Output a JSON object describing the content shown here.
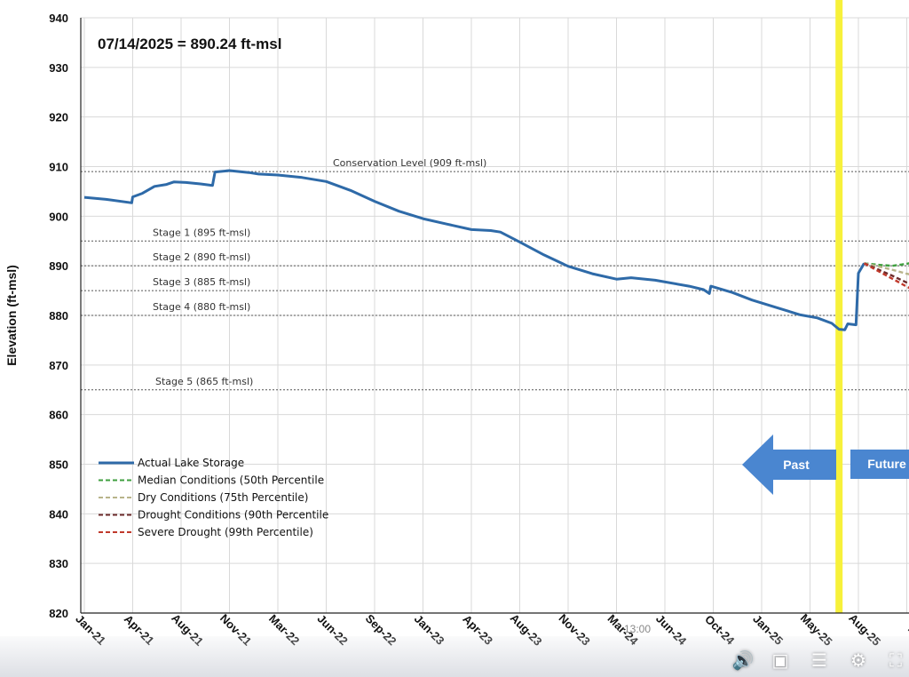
{
  "chart_data": {
    "type": "line",
    "annotation": "07/14/2025 = 890.24 ft-msl",
    "ylabel": "Elevation (ft-msl)",
    "xlabel": "",
    "ylim": [
      820,
      940
    ],
    "yticks": [
      820,
      830,
      840,
      850,
      860,
      870,
      880,
      890,
      900,
      910,
      920,
      930,
      940
    ],
    "x_categories": [
      "Jan-21",
      "Apr-21",
      "Aug-21",
      "Nov-21",
      "Mar-22",
      "Jun-22",
      "Sep-22",
      "Jan-23",
      "Apr-23",
      "Aug-23",
      "Nov-23",
      "Mar-24",
      "Jun-24",
      "Oct-24",
      "Jan-25",
      "May-25",
      "Aug-25",
      "D"
    ],
    "grid": true,
    "reference_lines": [
      {
        "label": "Conservation Level (909 ft-msl)",
        "y": 909
      },
      {
        "label": "Stage 1 (895 ft-msl)",
        "y": 895
      },
      {
        "label": "Stage 2 (890 ft-msl)",
        "y": 890
      },
      {
        "label": "Stage 3 (885 ft-msl)",
        "y": 885
      },
      {
        "label": "Stage 4 (880 ft-msl)",
        "y": 880
      },
      {
        "label": "Stage 5 (865 ft-msl)",
        "y": 865
      }
    ],
    "today_marker_x": 15.6,
    "series": [
      {
        "name": "Actual Lake Storage",
        "color": "#2e6aa8",
        "style": "solid",
        "points": [
          [
            0,
            903.8
          ],
          [
            0.45,
            903.4
          ],
          [
            0.98,
            902.7
          ],
          [
            1.0,
            903.9
          ],
          [
            1.2,
            904.6
          ],
          [
            1.45,
            906.0
          ],
          [
            1.7,
            906.4
          ],
          [
            1.85,
            906.9
          ],
          [
            2.1,
            906.8
          ],
          [
            2.4,
            906.5
          ],
          [
            2.65,
            906.2
          ],
          [
            2.7,
            908.9
          ],
          [
            3.0,
            909.2
          ],
          [
            3.4,
            908.8
          ],
          [
            3.6,
            908.5
          ],
          [
            4.0,
            908.3
          ],
          [
            4.5,
            907.8
          ],
          [
            5.0,
            907.0
          ],
          [
            5.5,
            905.2
          ],
          [
            6.0,
            903.0
          ],
          [
            6.5,
            901.0
          ],
          [
            7.0,
            899.5
          ],
          [
            7.5,
            898.4
          ],
          [
            8.0,
            897.3
          ],
          [
            8.4,
            897.1
          ],
          [
            8.6,
            896.8
          ],
          [
            9.0,
            894.8
          ],
          [
            9.5,
            892.2
          ],
          [
            10.0,
            889.9
          ],
          [
            10.5,
            888.4
          ],
          [
            11.0,
            887.3
          ],
          [
            11.3,
            887.6
          ],
          [
            11.8,
            887.1
          ],
          [
            12.5,
            885.9
          ],
          [
            12.8,
            885.2
          ],
          [
            12.92,
            884.4
          ],
          [
            12.95,
            885.9
          ],
          [
            13.4,
            884.6
          ],
          [
            13.8,
            883.1
          ],
          [
            14.3,
            881.6
          ],
          [
            14.8,
            880.1
          ],
          [
            15.15,
            879.5
          ],
          [
            15.45,
            878.4
          ],
          [
            15.6,
            877.2
          ],
          [
            15.72,
            877.1
          ],
          [
            15.78,
            878.3
          ],
          [
            15.95,
            878.1
          ],
          [
            16.0,
            888.5
          ],
          [
            16.12,
            890.5
          ]
        ]
      },
      {
        "name": "Median Conditions (50th Percentile",
        "color": "#3f9f3f",
        "style": "dashed",
        "points": [
          [
            16.12,
            890.5
          ],
          [
            16.4,
            890.2
          ],
          [
            16.7,
            890.0
          ],
          [
            17.0,
            890.4
          ],
          [
            17.3,
            891.0
          ]
        ]
      },
      {
        "name": "Dry Conditions (75th Percentile)",
        "color": "#b8b48a",
        "style": "dashed",
        "points": [
          [
            16.12,
            890.5
          ],
          [
            16.4,
            889.9
          ],
          [
            16.7,
            889.2
          ],
          [
            17.0,
            888.4
          ],
          [
            17.3,
            887.8
          ]
        ]
      },
      {
        "name": "Drought Conditions (90th Percentile",
        "color": "#6b2a2a",
        "style": "dashed",
        "points": [
          [
            16.12,
            890.5
          ],
          [
            16.4,
            889.3
          ],
          [
            16.7,
            888.0
          ],
          [
            17.0,
            886.6
          ],
          [
            17.3,
            885.2
          ]
        ]
      },
      {
        "name": "Severe Drought (99th Percentile)",
        "color": "#c0392b",
        "style": "dashed",
        "points": [
          [
            16.12,
            890.5
          ],
          [
            16.4,
            889.0
          ],
          [
            16.7,
            887.4
          ],
          [
            17.0,
            885.8
          ],
          [
            17.3,
            884.3
          ]
        ]
      }
    ],
    "arrows": {
      "past": "Past",
      "future": "Future"
    },
    "colors": {
      "today_marker": "#f7f13a",
      "arrow": "#4a86d0",
      "grid": "#d9d9d9",
      "reference_line": "#555555"
    }
  },
  "video_player": {
    "timestamp": "13:00",
    "icons": [
      "volume-icon",
      "captions-icon",
      "transcript-icon",
      "settings-icon",
      "fullscreen-icon"
    ]
  }
}
